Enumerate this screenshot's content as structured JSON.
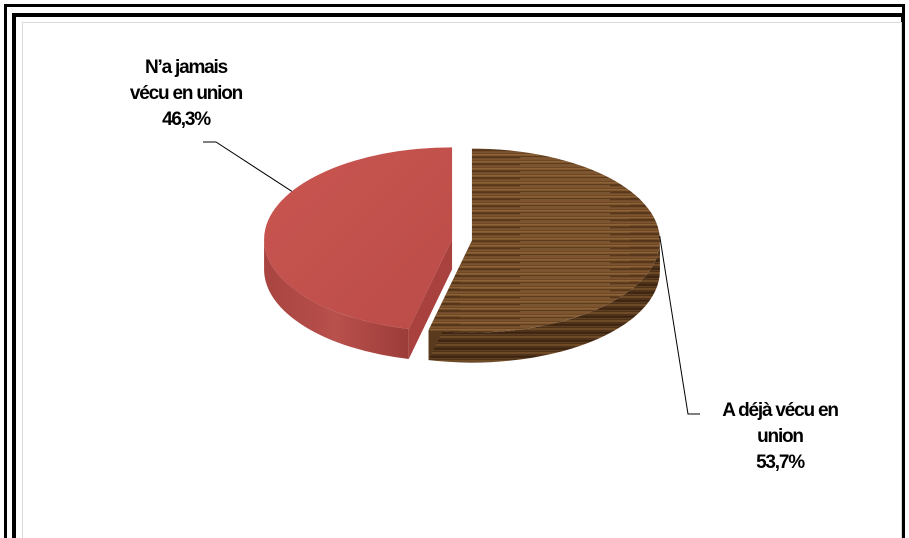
{
  "chart_data": {
    "type": "pie",
    "style": "3d",
    "title": "",
    "slices": [
      {
        "label_lines": [
          "N’a jamais",
          "vécu en union"
        ],
        "value": 46.3,
        "value_label": "46,3%",
        "color": "#c0504d",
        "texture": "solid"
      },
      {
        "label_lines": [
          "A déjà vécu en",
          "union"
        ],
        "value": 53.7,
        "value_label": "53,7%",
        "color": "#6b4423",
        "texture": "wood"
      }
    ],
    "exploded": true,
    "legend": "none"
  }
}
